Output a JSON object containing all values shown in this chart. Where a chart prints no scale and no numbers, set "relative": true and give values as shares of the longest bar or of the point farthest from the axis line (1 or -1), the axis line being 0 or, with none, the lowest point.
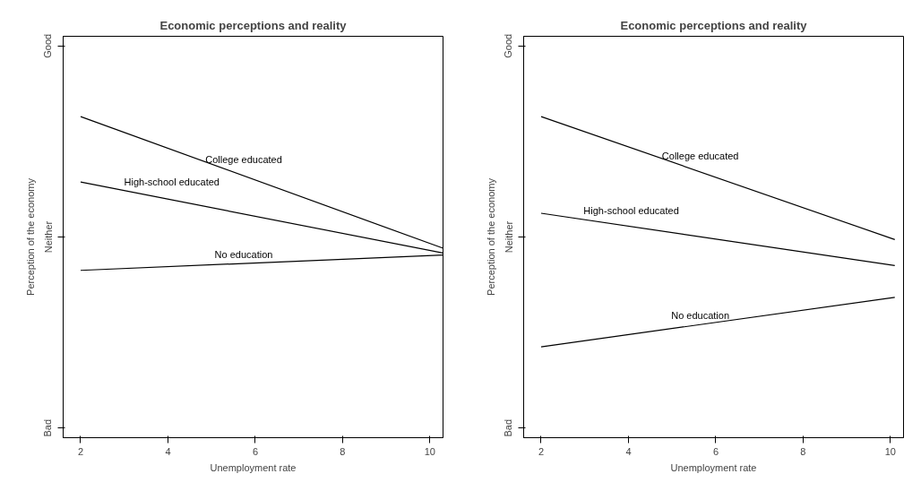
{
  "chart_data": [
    {
      "type": "line",
      "title": "Economic perceptions and reality",
      "xlabel": "Unemployment rate",
      "ylabel": "Perception of the economy",
      "x": [
        2,
        10.3
      ],
      "relative": true,
      "series": [
        {
          "name": "College educated",
          "color": "#000000",
          "values": [
            1,
            0.59
          ]
        },
        {
          "name": "High-school educated",
          "color": "#000000",
          "values": [
            0.796,
            0.575
          ]
        },
        {
          "name": "No education",
          "color": "#000000",
          "values": [
            0.521,
            0.569
          ]
        }
      ],
      "annotations": [
        "Bad",
        "Neither",
        "Good"
      ],
      "xlim": [
        1.6,
        10.3
      ],
      "xticks": [
        2,
        4,
        6,
        8,
        10
      ],
      "grid": false,
      "marker": "none",
      "line_style": "solid"
    },
    {
      "type": "line",
      "title": "Economic perceptions and reality",
      "xlabel": "Unemployment rate",
      "ylabel": "Perception of the economy",
      "x": [
        2,
        10.1
      ],
      "relative": true,
      "series": [
        {
          "name": "College educated",
          "color": "#000000",
          "values": [
            1,
            0.617
          ]
        },
        {
          "name": "High-school educated",
          "color": "#000000",
          "values": [
            0.699,
            0.536
          ]
        },
        {
          "name": "No education",
          "color": "#000000",
          "values": [
            0.283,
            0.437
          ]
        }
      ],
      "annotations": [
        "Bad",
        "Neither",
        "Good"
      ],
      "xlim": [
        1.6,
        10.3
      ],
      "xticks": [
        2,
        4,
        6,
        8,
        10
      ],
      "grid": false,
      "marker": "none",
      "line_style": "solid"
    }
  ]
}
